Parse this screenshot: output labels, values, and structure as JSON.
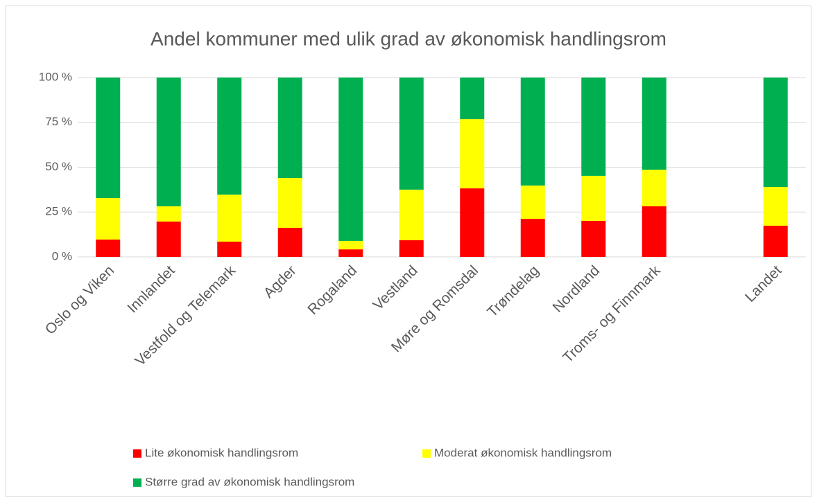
{
  "chart_data": {
    "type": "stacked_bar",
    "title": "Andel kommuner med ulik grad av økonomisk handlingsrom",
    "categories": [
      "Oslo og Viken",
      "Innlandet",
      "Vestfold og Telemark",
      "Agder",
      "Rogaland",
      "Vestland",
      "Møre og Romsdal",
      "Trøndelag",
      "Nordland",
      "Troms- og Finnmark",
      null,
      "Landet"
    ],
    "series": [
      {
        "name": "Lite økonomisk handlingsrom",
        "color": "#ff0000",
        "values": [
          9.7,
          19.7,
          8.5,
          16.2,
          4.2,
          9.3,
          38.2,
          21.2,
          20.1,
          28.2,
          null,
          17.4
        ]
      },
      {
        "name": "Moderat økonomisk handlingsrom",
        "color": "#ffff00",
        "values": [
          23.1,
          8.5,
          26.2,
          27.8,
          4.7,
          28.2,
          38.6,
          18.6,
          25.1,
          20.4,
          null,
          21.6
        ]
      },
      {
        "name": "Større grad av økonomisk handlingsrom",
        "color": "#00b050",
        "values": [
          67.2,
          71.8,
          65.3,
          56.0,
          91.1,
          62.5,
          23.2,
          60.2,
          54.8,
          51.4,
          null,
          61.0
        ]
      }
    ],
    "ylim": [
      0,
      100
    ],
    "yticks": [
      {
        "value": 0,
        "label": "0 %"
      },
      {
        "value": 25,
        "label": "25 %"
      },
      {
        "value": 50,
        "label": "50 %"
      },
      {
        "value": 75,
        "label": "75 %"
      },
      {
        "value": 100,
        "label": "100 %"
      }
    ],
    "grid": true,
    "legend": "bottom"
  }
}
